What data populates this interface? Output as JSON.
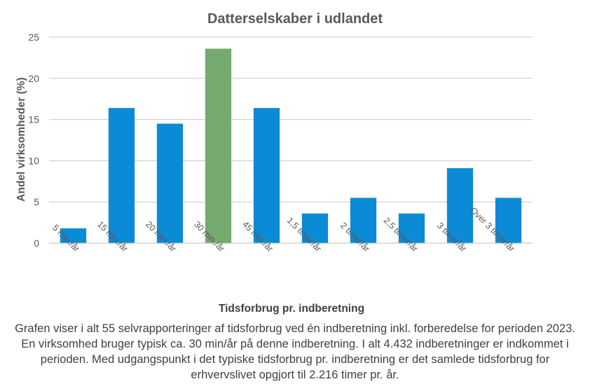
{
  "chart_data": {
    "type": "bar",
    "title": "Datterselskaber  i udlandet",
    "xlabel": "Tidsforbrug pr. indberetning",
    "ylabel": "Andel virksomheder  (%)",
    "categories": [
      "5 min./år",
      "15 min./år",
      "20 min./år",
      "30 min./år",
      "45 min./år",
      "1,5 timer/år",
      "2 timer/år",
      "2,5 timer/år",
      "3 timer/år",
      "Over 3 timer/år"
    ],
    "values": [
      1.8,
      16.4,
      14.5,
      23.6,
      16.4,
      3.6,
      5.5,
      3.6,
      9.1,
      5.5
    ],
    "highlight_index": 3,
    "ylim": [
      0,
      25
    ],
    "yticks": [
      0,
      5,
      10,
      15,
      20,
      25
    ],
    "grid": true,
    "legend": "none",
    "colors": {
      "bar": "#0b8ad6",
      "highlight": "#74aa6d",
      "grid": "#c9c9c9",
      "text": "#595959",
      "title": "#595959"
    }
  },
  "caption": "Grafen viser i alt 55 selvrapporteringer  af tidsforbrug ved én indberetning  inkl. forberedelse  for perioden 2023. En virksomhed bruger typisk ca. 30 min/år på denne indberetning.  I alt 4.432 indberetninger er indkommet i perioden.  Med udgangspunkt  i det typiske tidsforbrug pr. indberetning  er det samlede tidsforbrug  for erhvervslivet opgjort til 2.216 timer pr. år."
}
